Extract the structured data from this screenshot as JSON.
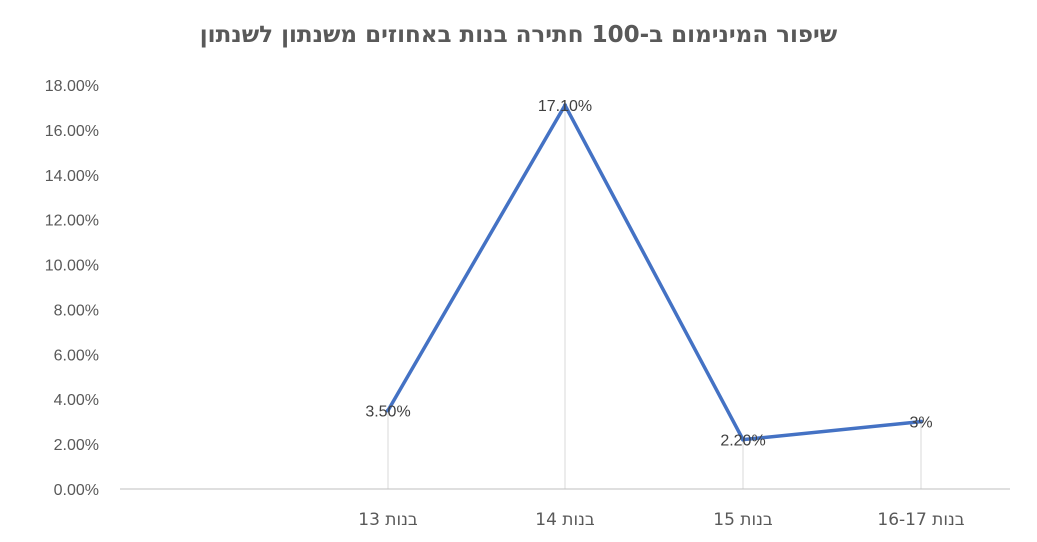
{
  "chart_data": {
    "type": "line",
    "title": "שיפור המינימום ב-100 חתירה בנות באחוזים משנתון לשנתון",
    "categories": [
      "בנות 13",
      "בנות 14",
      "בנות 15",
      "בנות 16-17"
    ],
    "values": [
      3.5,
      17.1,
      2.2,
      3.0
    ],
    "data_labels": [
      "3.50%",
      "17.10%",
      "2.20%",
      "3%"
    ],
    "y_ticks": [
      "0.00%",
      "2.00%",
      "4.00%",
      "6.00%",
      "8.00%",
      "10.00%",
      "12.00%",
      "14.00%",
      "16.00%",
      "18.00%"
    ],
    "ylim": [
      0,
      18
    ],
    "xlabel": "",
    "ylabel": "",
    "grid": "vertical-category-lines",
    "legend": "none",
    "colors": {
      "line": "#4472C4",
      "text": "#595959",
      "gridline": "#D9D9D9",
      "axis": "#BFBFBF"
    }
  }
}
